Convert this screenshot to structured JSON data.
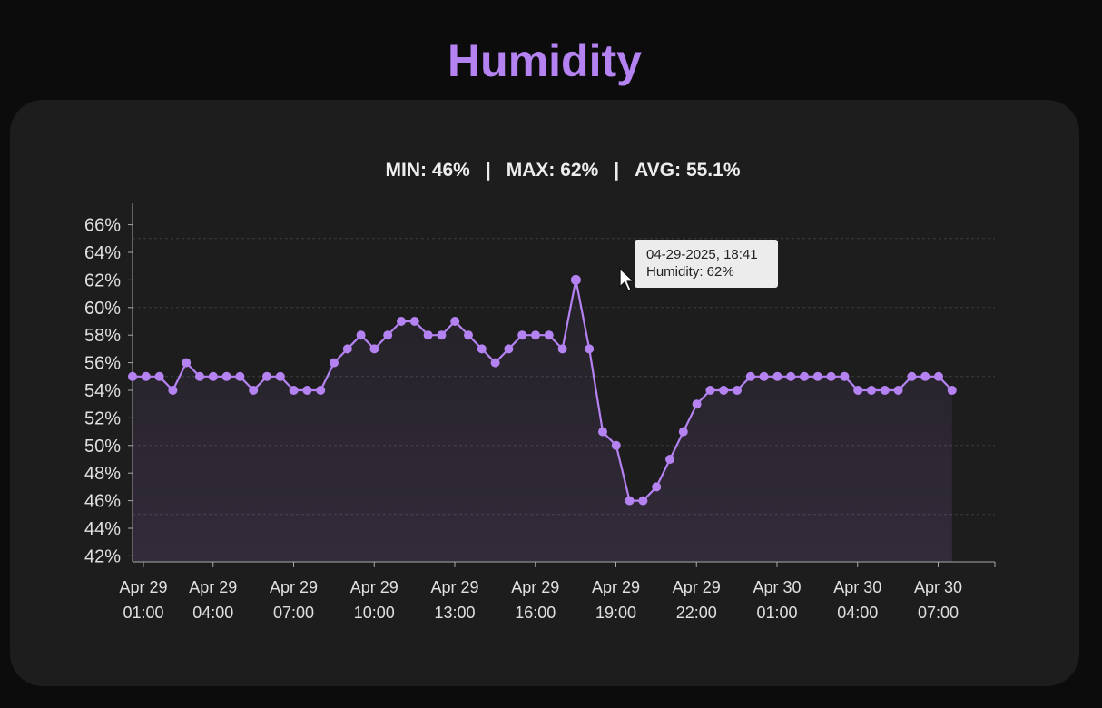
{
  "title": "Humidity",
  "stats": {
    "min": "MIN: 46%",
    "max": "MAX: 62%",
    "avg": "AVG: 55.1%",
    "separator": "|"
  },
  "tooltip": {
    "date": "04-29-2025, 18:41",
    "value": "Humidity: 62%"
  },
  "colors": {
    "accent": "#b582f2",
    "card": "#1d1d1d",
    "background": "#0c0c0c"
  },
  "chart_data": {
    "type": "line",
    "ylim": [
      41,
      67
    ],
    "grid": true,
    "ytick_labels": [
      "42%",
      "44%",
      "46%",
      "48%",
      "50%",
      "52%",
      "54%",
      "56%",
      "58%",
      "60%",
      "62%",
      "64%",
      "66%"
    ],
    "xtick_labels": [
      [
        "Apr 29",
        "01:00"
      ],
      [
        "Apr 29",
        "04:00"
      ],
      [
        "Apr 29",
        "07:00"
      ],
      [
        "Apr 29",
        "10:00"
      ],
      [
        "Apr 29",
        "13:00"
      ],
      [
        "Apr 29",
        "16:00"
      ],
      [
        "Apr 29",
        "19:00"
      ],
      [
        "Apr 29",
        "22:00"
      ],
      [
        "Apr 30",
        "01:00"
      ],
      [
        "Apr 30",
        "04:00"
      ],
      [
        "Apr 30",
        "07:00"
      ]
    ],
    "series": [
      {
        "values": [
          55,
          55,
          55,
          54,
          56,
          55,
          55,
          55,
          55,
          54,
          55,
          55,
          54,
          54,
          54,
          56,
          57,
          58,
          57,
          58,
          59,
          59,
          58,
          58,
          59,
          58,
          57,
          56,
          57,
          58,
          58,
          58,
          57,
          62,
          57,
          51,
          50,
          46,
          46,
          47,
          49,
          51,
          53,
          54,
          54,
          54,
          55,
          55,
          55,
          55,
          55,
          55,
          55,
          55,
          54,
          54,
          54,
          54,
          55,
          55,
          55,
          54
        ]
      }
    ],
    "highlight_index": 33
  }
}
